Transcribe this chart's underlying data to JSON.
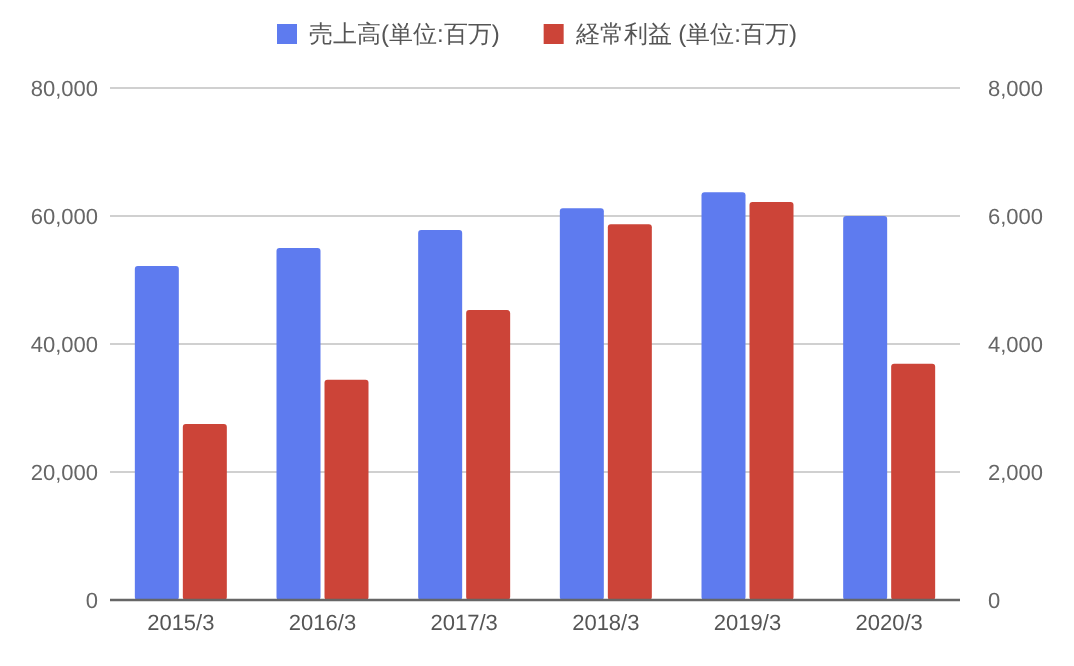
{
  "chart_data": {
    "type": "bar",
    "categories": [
      "2015/3",
      "2016/3",
      "2017/3",
      "2018/3",
      "2019/3",
      "2020/3"
    ],
    "series": [
      {
        "name": "売上高(単位:百万)",
        "color": "#5e7bef",
        "values": [
          52200,
          55000,
          57800,
          61200,
          63700,
          60000
        ]
      },
      {
        "name": "経常利益 (単位:百万)",
        "color": "#cc4438",
        "axis": "y2",
        "values": [
          2750,
          3440,
          4530,
          5870,
          6220,
          3690
        ]
      }
    ],
    "ylim": [
      0,
      80000
    ],
    "yticks": [
      {
        "value": 0,
        "label": "0"
      },
      {
        "value": 20000,
        "label": "20,000"
      },
      {
        "value": 40000,
        "label": "40,000"
      },
      {
        "value": 60000,
        "label": "60,000"
      },
      {
        "value": 80000,
        "label": "80,000"
      }
    ],
    "y2lim": [
      0,
      8000
    ],
    "y2ticks": [
      {
        "value": 0,
        "label": "0"
      },
      {
        "value": 2000,
        "label": "2,000"
      },
      {
        "value": 4000,
        "label": "4,000"
      },
      {
        "value": 6000,
        "label": "6,000"
      },
      {
        "value": 8000,
        "label": "8,000"
      }
    ],
    "grid": "y",
    "legend": "top"
  }
}
